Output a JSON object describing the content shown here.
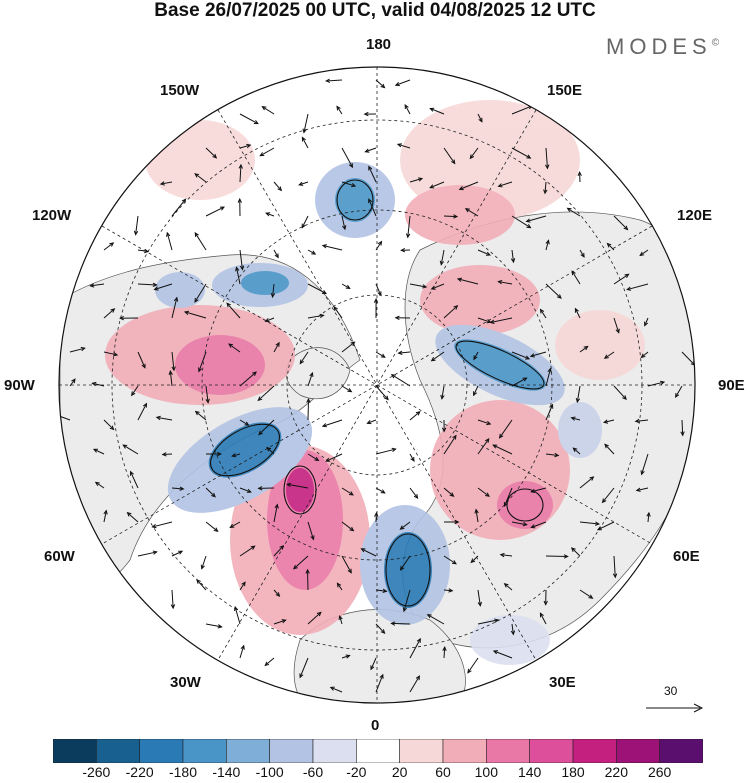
{
  "title": "Base 26/07/2025 00 UTC, valid 04/08/2025 12 UTC",
  "brand": "MODES",
  "brand_mark": "©",
  "longitude_labels": {
    "top": "180",
    "bottom": "0",
    "left": "90W",
    "right": "90E",
    "upper_left": "150W",
    "upper_right": "150E",
    "mid_upper_left": "120W",
    "mid_upper_right": "120E",
    "lower_left": "60W",
    "lower_right": "60E",
    "bottom_left": "30W",
    "bottom_right": "30E"
  },
  "reference_vector": {
    "label": "30"
  },
  "colorbar": {
    "ticks": [
      "-260",
      "-220",
      "-180",
      "-140",
      "-100",
      "-60",
      "-20",
      "20",
      "60",
      "100",
      "140",
      "180",
      "220",
      "260"
    ],
    "colors": [
      "#0b3c5d",
      "#17608f",
      "#2a7ab5",
      "#4a95c8",
      "#7fafd8",
      "#b2c3e4",
      "#dcdff0",
      "#ffffff",
      "#f7d8d8",
      "#f2aeb8",
      "#ea78a6",
      "#dd4e9b",
      "#c4207f",
      "#9c1276",
      "#5a0e6e"
    ]
  },
  "anomaly_colors": {
    "strong_neg": "#1d6fa8",
    "neg": "#7fafd8",
    "weak_neg": "#c9d2ea",
    "very_weak_neg": "#e4e6f2",
    "weak_pos": "#f7d8d8",
    "pos": "#f2aeb8",
    "strong_pos": "#ea78a6",
    "very_strong_pos": "#dd4e9b",
    "land": "#ececec"
  }
}
